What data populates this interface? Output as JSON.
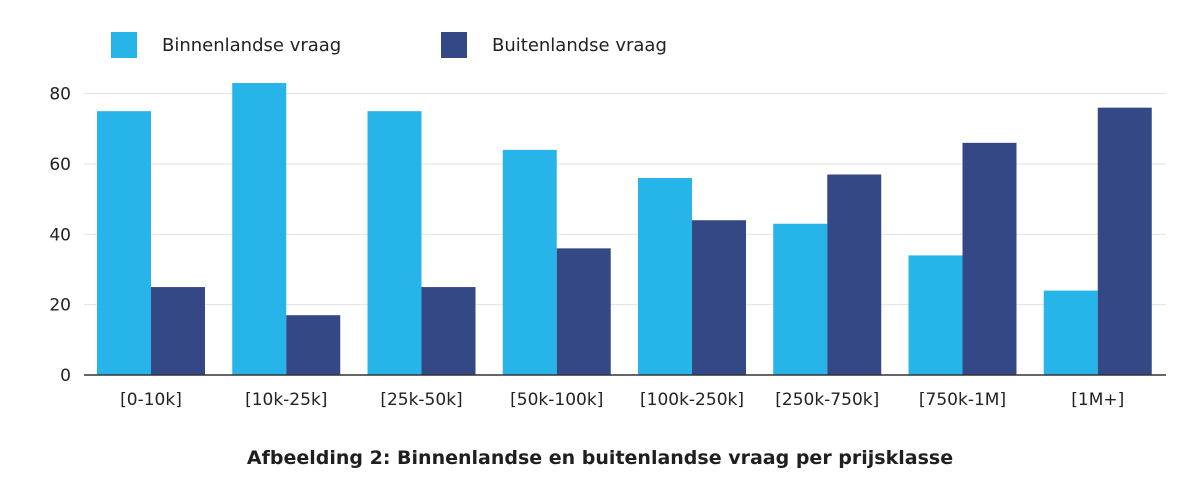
{
  "chart_data": {
    "type": "bar",
    "categories": [
      "[0-10k]",
      "[10k-25k]",
      "[25k-50k]",
      "[50k-100k]",
      "[100k-250k]",
      "[250k-750k]",
      "[750k-1M]",
      "[1M+]"
    ],
    "series": [
      {
        "name": "Binnenlandse vraag",
        "color": "#27b4e8",
        "values": [
          75,
          83,
          75,
          64,
          56,
          43,
          34,
          24
        ]
      },
      {
        "name": "Buitenlandse vraag",
        "color": "#354886",
        "values": [
          25,
          17,
          25,
          36,
          44,
          57,
          66,
          76
        ]
      }
    ],
    "yticks": [
      0,
      20,
      40,
      60,
      80
    ],
    "ylim": [
      0,
      85
    ],
    "grid": true,
    "legend_position": "top-left"
  },
  "caption": "Afbeelding 2: Binnenlandse en buitenlandse vraag per prijsklasse"
}
